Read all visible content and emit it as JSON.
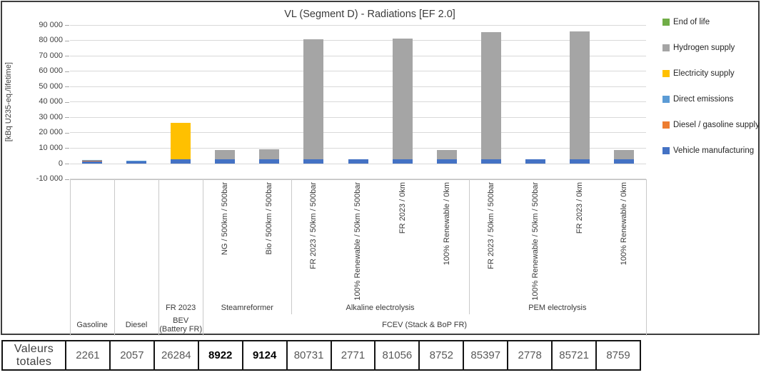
{
  "figure": {
    "title": "VL (Segment D) - Radiations [EF 2.0]",
    "y_axis": {
      "label": "[kBq U235-eq./lifetime]",
      "ticks": [
        "90 000",
        "80 000",
        "70 000",
        "60 000",
        "50 000",
        "40 000",
        "30 000",
        "20 000",
        "10 000",
        "0",
        "-10 000"
      ]
    },
    "legend": [
      {
        "label": "End of life",
        "color": "#70AD47"
      },
      {
        "label": "Hydrogen supply",
        "color": "#A5A5A5"
      },
      {
        "label": "Electricity supply",
        "color": "#FFC000"
      },
      {
        "label": "Direct emissions",
        "color": "#5B9BD5"
      },
      {
        "label": "Diesel / gasoline supply",
        "color": "#ED7D31"
      },
      {
        "label": "Vehicle manufacturing",
        "color": "#4472C4"
      }
    ]
  },
  "chart_data": {
    "type": "bar",
    "stacked": true,
    "title": "VL (Segment D) - Radiations [EF 2.0]",
    "ylabel": "[kBq U235-eq./lifetime]",
    "ylim": [
      -10000,
      90000
    ],
    "ystep": 10000,
    "grid": true,
    "legend_position": "right",
    "categories": [
      {
        "variant": "",
        "tech": "",
        "vehicle": "Gasoline"
      },
      {
        "variant": "",
        "tech": "",
        "vehicle": "Diesel"
      },
      {
        "variant": "",
        "tech": "FR 2023",
        "vehicle": "BEV (Battery FR)"
      },
      {
        "variant": "NG / 500km / 500bar",
        "tech": "Steamreformer",
        "vehicle": "FCEV (Stack & BoP FR)"
      },
      {
        "variant": "Bio / 500km / 500bar",
        "tech": "Steamreformer",
        "vehicle": "FCEV (Stack & BoP FR)"
      },
      {
        "variant": "FR 2023 / 50km / 500bar",
        "tech": "Alkaline electrolysis",
        "vehicle": "FCEV (Stack & BoP FR)"
      },
      {
        "variant": "100% Renewable / 50km / 500bar",
        "tech": "Alkaline electrolysis",
        "vehicle": "FCEV (Stack & BoP FR)"
      },
      {
        "variant": "FR 2023 / 0km",
        "tech": "Alkaline electrolysis",
        "vehicle": "FCEV (Stack & BoP FR)"
      },
      {
        "variant": "100% Renewable / 0km",
        "tech": "Alkaline electrolysis",
        "vehicle": "FCEV (Stack & BoP FR)"
      },
      {
        "variant": "FR 2023 / 50km / 500bar",
        "tech": "PEM electrolysis",
        "vehicle": "FCEV (Stack & BoP FR)"
      },
      {
        "variant": "100% Renewable / 50km / 500bar",
        "tech": "PEM electrolysis",
        "vehicle": "FCEV (Stack & BoP FR)"
      },
      {
        "variant": "FR 2023 / 0km",
        "tech": "PEM electrolysis",
        "vehicle": "FCEV (Stack & BoP FR)"
      },
      {
        "variant": "100% Renewable / 0km",
        "tech": "PEM electrolysis",
        "vehicle": "FCEV (Stack & BoP FR)"
      }
    ],
    "tech_groups": [
      {
        "label": "FR 2023",
        "from": 2,
        "to": 2
      },
      {
        "label": "Steamreformer",
        "from": 3,
        "to": 4
      },
      {
        "label": "Alkaline electrolysis",
        "from": 5,
        "to": 8
      },
      {
        "label": "PEM electrolysis",
        "from": 9,
        "to": 12
      }
    ],
    "vehicle_groups": [
      {
        "label": "Gasoline",
        "from": 0,
        "to": 0
      },
      {
        "label": "Diesel",
        "from": 1,
        "to": 1
      },
      {
        "label": "BEV (Battery FR)",
        "from": 2,
        "to": 2
      },
      {
        "label": "FCEV (Stack & BoP FR)",
        "from": 3,
        "to": 12
      }
    ],
    "series": [
      {
        "name": "Vehicle manufacturing",
        "color": "#4472C4",
        "values": [
          1300,
          1350,
          2800,
          2800,
          2800,
          2800,
          2771,
          2800,
          2800,
          2800,
          2778,
          2800,
          2800
        ]
      },
      {
        "name": "Diesel / gasoline supply",
        "color": "#ED7D31",
        "values": [
          861,
          650,
          0,
          0,
          0,
          0,
          0,
          0,
          0,
          0,
          0,
          0,
          0
        ]
      },
      {
        "name": "Direct emissions",
        "color": "#5B9BD5",
        "values": [
          100,
          57,
          0,
          0,
          0,
          0,
          0,
          0,
          0,
          0,
          0,
          0,
          0
        ]
      },
      {
        "name": "Electricity supply",
        "color": "#FFC000",
        "values": [
          0,
          0,
          23484,
          0,
          0,
          0,
          0,
          0,
          0,
          0,
          0,
          0,
          0
        ]
      },
      {
        "name": "Hydrogen supply",
        "color": "#A5A5A5",
        "values": [
          0,
          0,
          0,
          6122,
          6324,
          77931,
          0,
          78256,
          5952,
          82597,
          0,
          82921,
          5959
        ]
      },
      {
        "name": "End of life",
        "color": "#70AD47",
        "values": [
          0,
          0,
          0,
          0,
          0,
          0,
          0,
          0,
          0,
          0,
          0,
          0,
          0
        ]
      }
    ],
    "totals": [
      2261,
      2057,
      26284,
      8922,
      9124,
      80731,
      2771,
      81056,
      8752,
      85397,
      2778,
      85721,
      8759
    ]
  },
  "totals_table": {
    "row_label_line1": "Valeurs",
    "row_label_line2": "totales",
    "cells": [
      {
        "text": "2261",
        "bold": false
      },
      {
        "text": "2057",
        "bold": false
      },
      {
        "text": "26284",
        "bold": false
      },
      {
        "text": "8922",
        "bold": true
      },
      {
        "text": "9124",
        "bold": true
      },
      {
        "text": "80731",
        "bold": false
      },
      {
        "text": "2771",
        "bold": false
      },
      {
        "text": "81056",
        "bold": false
      },
      {
        "text": "8752",
        "bold": false
      },
      {
        "text": "85397",
        "bold": false
      },
      {
        "text": "2778",
        "bold": false
      },
      {
        "text": "85721",
        "bold": false
      },
      {
        "text": "8759",
        "bold": false
      }
    ]
  }
}
